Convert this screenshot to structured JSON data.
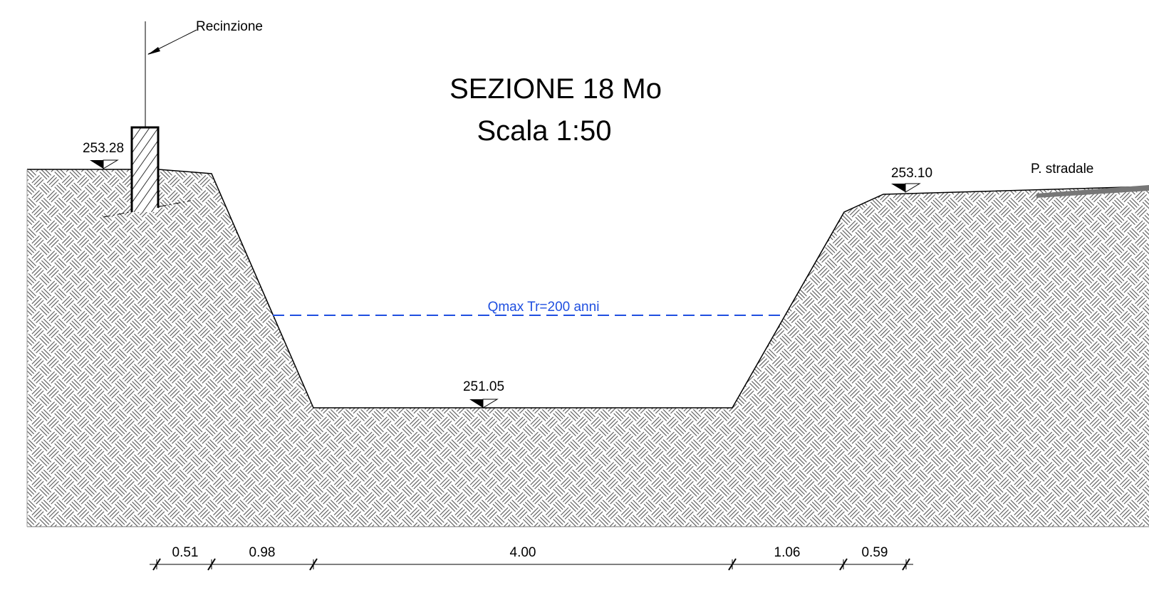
{
  "title": "SEZIONE 18 Mo",
  "subtitle": "Scala 1:50",
  "labels": {
    "fence": "Recinzione",
    "road": "P. stradale",
    "water": "Qmax Tr=200 anni"
  },
  "elevations": [
    "253.28",
    "251.05",
    "253.10"
  ],
  "dimensions": [
    "0.51",
    "0.98",
    "4.00",
    "1.06",
    "0.59"
  ]
}
